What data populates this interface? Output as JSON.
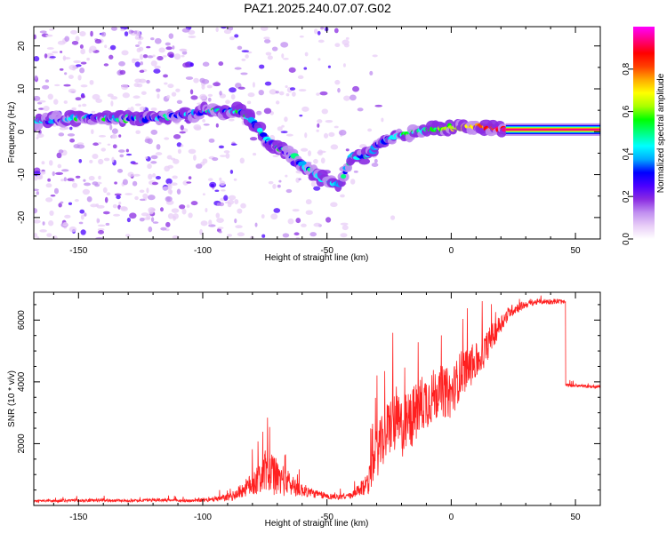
{
  "page": {
    "title": "PAZ1.2025.240.07.07.G02"
  },
  "chart_data": [
    {
      "type": "heatmap",
      "title": "PAZ1.2025.240.07.07.G02",
      "xlabel": "Height of straight line (km)",
      "ylabel": "Frequency (Hz)",
      "xlim": [
        -168,
        60
      ],
      "ylim": [
        -25,
        24.5
      ],
      "xticks": [
        -150,
        -100,
        -50,
        0,
        50
      ],
      "xtick_labels": [
        "-150",
        "-100",
        "-50",
        "0",
        "50"
      ],
      "yticks": [
        -20,
        -10,
        0,
        10,
        20
      ],
      "ytick_labels": [
        "-20",
        "-10",
        "0",
        "10",
        "20"
      ],
      "ridge": {
        "x": [
          -165,
          -150,
          -140,
          -125,
          -110,
          -100,
          -95,
          -85,
          -80,
          -75,
          -70,
          -65,
          -60,
          -55,
          -50,
          -45,
          -40,
          -35,
          -30,
          -25,
          -20,
          -10,
          0,
          10,
          20,
          30,
          40,
          50,
          60
        ],
        "y": [
          2.5,
          3.2,
          3.2,
          3.0,
          3.6,
          4.7,
          4.9,
          4.9,
          2.5,
          -1.5,
          -3.5,
          -5.0,
          -7.5,
          -10.0,
          -11.5,
          -12.3,
          -5.5,
          -6.0,
          -3.5,
          -1.5,
          -0.5,
          0.3,
          1.0,
          1.2,
          0.7,
          0.5,
          0.5,
          0.5,
          0.5
        ]
      },
      "colorbar": {
        "label": "Normalized spectral amplitude",
        "range": [
          0,
          1
        ],
        "ticks": [
          0.0,
          0.2,
          0.4,
          0.6,
          0.8
        ],
        "tick_labels": [
          "0.0",
          "0.2",
          "0.4",
          "0.6",
          "0.8"
        ],
        "colors": [
          "#ffffff",
          "#e8cdf7",
          "#c08ef0",
          "#8a2be2",
          "#4a00ff",
          "#0000ff",
          "#00aaff",
          "#00ffff",
          "#00ff80",
          "#00ff00",
          "#aaff00",
          "#ffff00",
          "#ffaa00",
          "#ff4000",
          "#ff0000",
          "#ff0080",
          "#ff00ff"
        ]
      }
    },
    {
      "type": "line",
      "xlabel": "Height of straight line (km)",
      "ylabel": "SNR (10 * v/v)",
      "xlim": [
        -168,
        60
      ],
      "ylim": [
        0,
        6900
      ],
      "xticks": [
        -150,
        -100,
        -50,
        0,
        50
      ],
      "xtick_labels": [
        "-150",
        "-100",
        "-50",
        "0",
        "50"
      ],
      "yticks": [
        2000,
        4000,
        6000
      ],
      "ytick_labels": [
        "2000",
        "4000",
        "6000"
      ],
      "line_color": "#ff2020",
      "series": [
        {
          "name": "SNR",
          "x": [
            -168,
            -150,
            -140,
            -130,
            -120,
            -105,
            -95,
            -88,
            -82,
            -78,
            -74,
            -70,
            -65,
            -60,
            -55,
            -50,
            -45,
            -40,
            -35,
            -33,
            -30,
            -27,
            -24,
            -20,
            -16,
            -12,
            -8,
            -4,
            0,
            4,
            8,
            12,
            16,
            20,
            24,
            28,
            32,
            36,
            40,
            44,
            45,
            46,
            50,
            55,
            60
          ],
          "y": [
            140,
            160,
            170,
            150,
            180,
            150,
            190,
            300,
            600,
            850,
            1100,
            900,
            700,
            500,
            380,
            300,
            280,
            320,
            600,
            900,
            1700,
            2200,
            2700,
            2500,
            2800,
            3300,
            3500,
            3700,
            3600,
            4300,
            4500,
            4800,
            5400,
            5900,
            6300,
            6450,
            6550,
            6600,
            6600,
            6600,
            6580,
            3900,
            3880,
            3850,
            3850
          ],
          "noise": [
            40,
            50,
            50,
            40,
            50,
            45,
            70,
            150,
            300,
            500,
            700,
            600,
            400,
            220,
            140,
            100,
            90,
            100,
            300,
            500,
            800,
            900,
            1000,
            1000,
            1000,
            950,
            900,
            850,
            800,
            750,
            650,
            550,
            450,
            300,
            200,
            140,
            100,
            90,
            90,
            90,
            60,
            50,
            50,
            50,
            50
          ]
        }
      ]
    }
  ]
}
